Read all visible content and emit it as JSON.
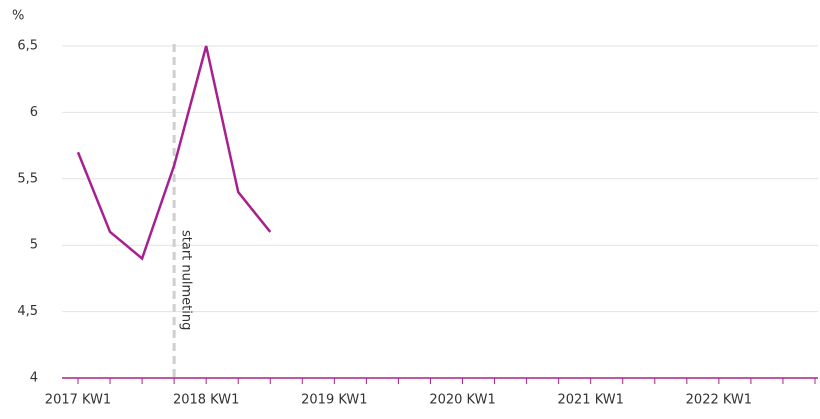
{
  "chart_data": {
    "type": "line",
    "y_label": "%",
    "categories": [
      "2017 KW1",
      null,
      null,
      null,
      "2018 KW1",
      null,
      null,
      null,
      "2019 KW1",
      null,
      null,
      null,
      "2020 KW1",
      null,
      null,
      null,
      "2021 KW1",
      null,
      null,
      null,
      "2022 KW1",
      null,
      null,
      null
    ],
    "series": [
      {
        "name": null,
        "color": "#a8208f",
        "values": [
          5.7,
          5.1,
          4.9,
          5.6,
          6.5,
          5.4,
          5.1,
          null,
          null,
          null,
          null,
          null,
          null,
          null,
          null,
          null,
          null,
          null,
          null,
          null,
          null,
          null,
          null,
          null
        ]
      }
    ],
    "ylim": [
      4,
      6.5
    ],
    "yticks": [
      4,
      {
        "value": 4.5,
        "label": "4,5"
      },
      5,
      {
        "value": 5.5,
        "label": "5,5"
      },
      6,
      {
        "value": 6.5,
        "label": "6,5"
      }
    ],
    "grid": true,
    "annotations": [
      {
        "text": "start nulmeting"
      }
    ]
  }
}
